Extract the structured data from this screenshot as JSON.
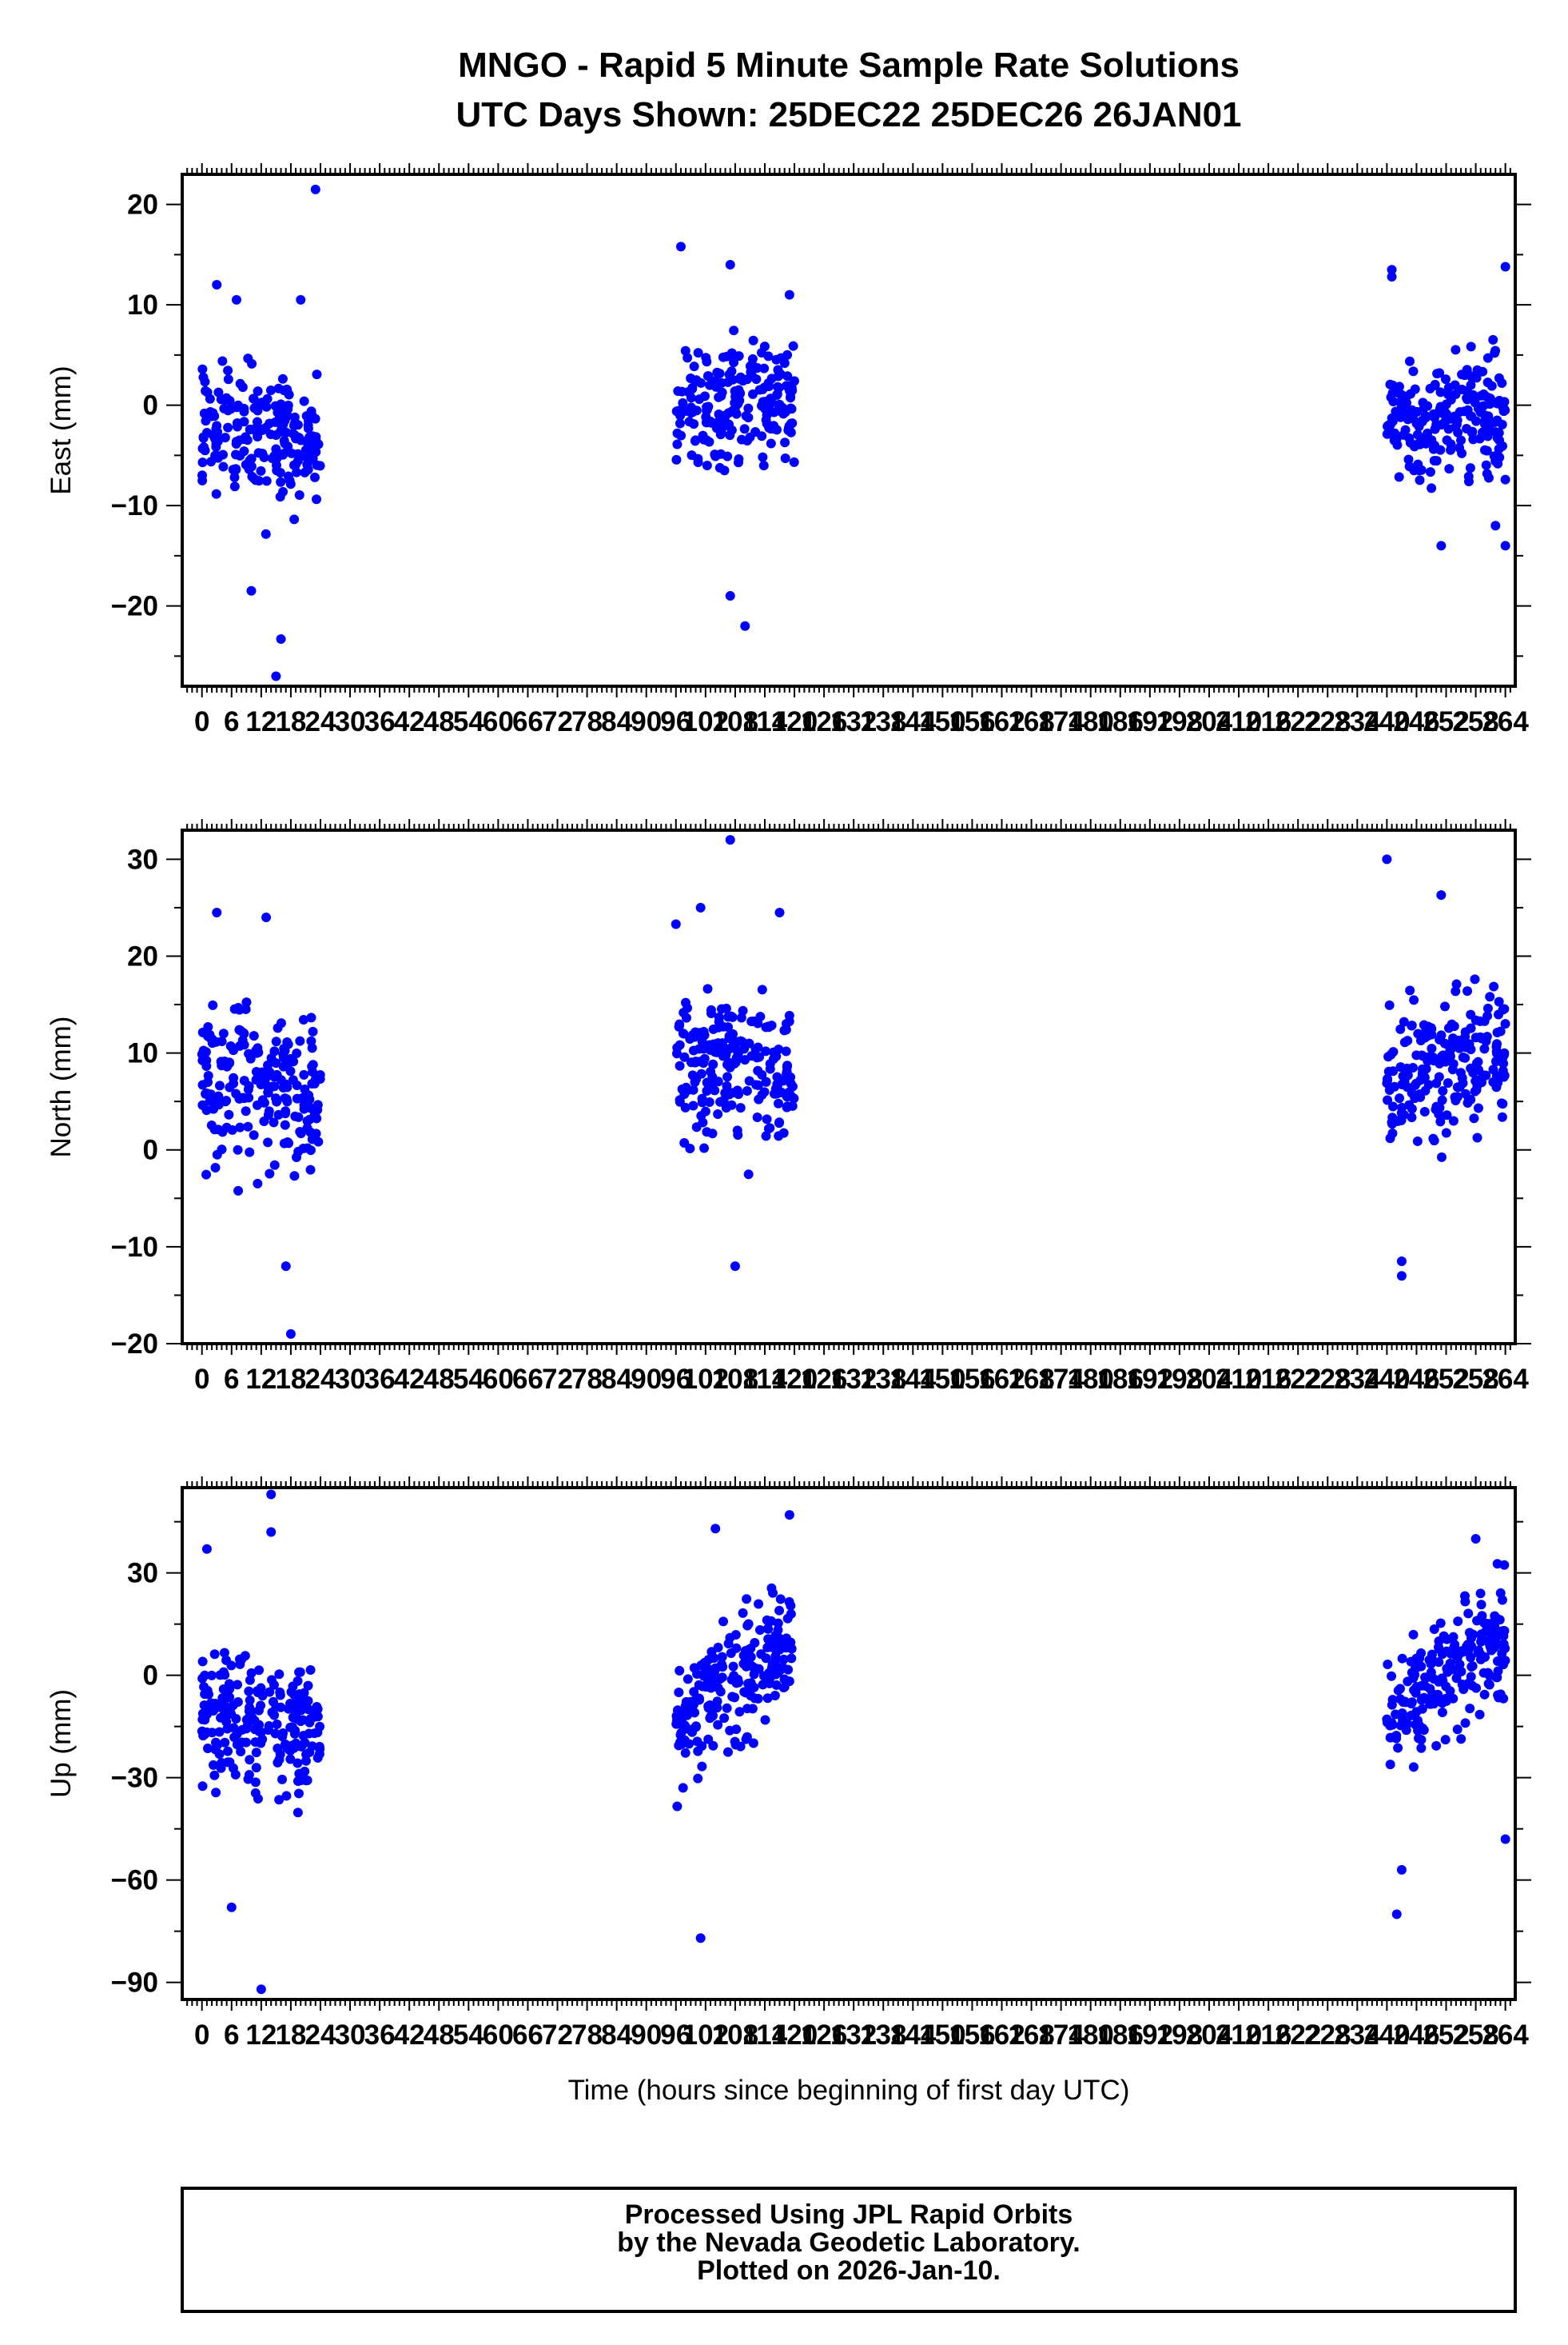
{
  "title_line1": "MNGO - Rapid 5 Minute Sample Rate Solutions",
  "title_line2": "UTC Days Shown:  25DEC22 25DEC26 26JAN01",
  "marker_color": "#0000ff",
  "xlabel": "Time (hours since beginning of first day UTC)",
  "footer": {
    "line1": "Processed Using JPL Rapid Orbits",
    "line2": "by the Nevada Geodetic Laboratory.",
    "line3": "Plotted on 2026-Jan-10."
  },
  "chart_data": [
    {
      "type": "scatter",
      "ylabel": "East (mm)",
      "xlim": [
        -4,
        266
      ],
      "ylim": [
        -28,
        23
      ],
      "yticks": [
        -20,
        -10,
        0,
        10,
        20
      ],
      "xticks": [
        0,
        6,
        12,
        18,
        24,
        30,
        36,
        42,
        48,
        54,
        60,
        66,
        72,
        78,
        84,
        90,
        96,
        102,
        108,
        114,
        120,
        126,
        132,
        138,
        144,
        150,
        156,
        162,
        168,
        174,
        180,
        186,
        192,
        198,
        204,
        210,
        216,
        222,
        228,
        234,
        240,
        246,
        252,
        258,
        264
      ],
      "xtick_labels": [
        "0",
        "6",
        "12",
        "18",
        "24",
        "30",
        "36",
        "42",
        "48",
        "54",
        "60",
        "66",
        "72",
        "78",
        "84",
        "90",
        "96",
        "102",
        "108",
        "114",
        "120",
        "126",
        "132",
        "138",
        "144",
        "150",
        "156",
        "162",
        "168",
        "174",
        "180",
        "186",
        "192",
        "198",
        "204",
        "210",
        "216",
        "222",
        "228",
        "234",
        "240",
        "246",
        "252",
        "258",
        "264"
      ],
      "clusters": [
        {
          "x_range": [
            0,
            24
          ],
          "mean_start": -2,
          "mean_end": -4,
          "spread": 4.5
        },
        {
          "x_range": [
            96,
            120
          ],
          "mean_start": 0,
          "mean_end": 0,
          "spread": 4.5
        },
        {
          "x_range": [
            240,
            264
          ],
          "mean_start": -1,
          "mean_end": -1,
          "spread": 4.0
        }
      ],
      "outliers": [
        {
          "x": 23,
          "y": 21.5
        },
        {
          "x": 15,
          "y": -27
        },
        {
          "x": 16,
          "y": -23.3
        },
        {
          "x": 3,
          "y": 12
        },
        {
          "x": 7,
          "y": 10.5
        },
        {
          "x": 20,
          "y": 10.5
        },
        {
          "x": 10,
          "y": -18.5
        },
        {
          "x": 97,
          "y": 15.8
        },
        {
          "x": 107,
          "y": 14
        },
        {
          "x": 107,
          "y": -19
        },
        {
          "x": 110,
          "y": -22
        },
        {
          "x": 119,
          "y": 11
        },
        {
          "x": 241,
          "y": 13.5
        },
        {
          "x": 241,
          "y": 12.8
        },
        {
          "x": 264,
          "y": 13.8
        },
        {
          "x": 251,
          "y": -14
        },
        {
          "x": 264,
          "y": -14
        },
        {
          "x": 262,
          "y": -12
        }
      ]
    },
    {
      "type": "scatter",
      "ylabel": "North (mm)",
      "xlim": [
        -4,
        266
      ],
      "ylim": [
        -20,
        33
      ],
      "yticks": [
        -20,
        -10,
        0,
        10,
        20,
        30
      ],
      "xticks": [
        0,
        6,
        12,
        18,
        24,
        30,
        36,
        42,
        48,
        54,
        60,
        66,
        72,
        78,
        84,
        90,
        96,
        102,
        108,
        114,
        120,
        126,
        132,
        138,
        144,
        150,
        156,
        162,
        168,
        174,
        180,
        186,
        192,
        198,
        204,
        210,
        216,
        222,
        228,
        234,
        240,
        246,
        252,
        258,
        264
      ],
      "xtick_labels": [
        "0",
        "6",
        "12",
        "18",
        "24",
        "30",
        "36",
        "42",
        "48",
        "54",
        "60",
        "66",
        "72",
        "78",
        "84",
        "90",
        "96",
        "102",
        "108",
        "114",
        "120",
        "126",
        "132",
        "138",
        "144",
        "150",
        "156",
        "162",
        "168",
        "174",
        "180",
        "186",
        "192",
        "198",
        "204",
        "210",
        "216",
        "222",
        "228",
        "234",
        "240",
        "246",
        "252",
        "258",
        "264"
      ],
      "clusters": [
        {
          "x_range": [
            0,
            24
          ],
          "mean_start": 7,
          "mean_end": 6,
          "spread": 6.0
        },
        {
          "x_range": [
            96,
            120
          ],
          "mean_start": 10,
          "mean_end": 8,
          "spread": 5.0
        },
        {
          "x_range": [
            240,
            264
          ],
          "mean_start": 7,
          "mean_end": 10,
          "spread": 5.0
        }
      ],
      "outliers": [
        {
          "x": 3,
          "y": 24.5
        },
        {
          "x": 13,
          "y": 24
        },
        {
          "x": 18,
          "y": -19
        },
        {
          "x": 17,
          "y": -12
        },
        {
          "x": 107,
          "y": 32
        },
        {
          "x": 108,
          "y": -12
        },
        {
          "x": 101,
          "y": 25
        },
        {
          "x": 96,
          "y": 23.3
        },
        {
          "x": 117,
          "y": 24.5
        },
        {
          "x": 240,
          "y": 30
        },
        {
          "x": 251,
          "y": 26.3
        },
        {
          "x": 243,
          "y": -13
        },
        {
          "x": 243,
          "y": -11.5
        }
      ]
    },
    {
      "type": "scatter",
      "ylabel": "Up (mm)",
      "xlim": [
        -4,
        266
      ],
      "ylim": [
        -95,
        55
      ],
      "yticks": [
        -90,
        -60,
        -30,
        0,
        30
      ],
      "xticks": [
        0,
        6,
        12,
        18,
        24,
        30,
        36,
        42,
        48,
        54,
        60,
        66,
        72,
        78,
        84,
        90,
        96,
        102,
        108,
        114,
        120,
        126,
        132,
        138,
        144,
        150,
        156,
        162,
        168,
        174,
        180,
        186,
        192,
        198,
        204,
        210,
        216,
        222,
        228,
        234,
        240,
        246,
        252,
        258,
        264
      ],
      "xtick_labels": [
        "0",
        "6",
        "12",
        "18",
        "24",
        "30",
        "36",
        "42",
        "48",
        "54",
        "60",
        "66",
        "72",
        "78",
        "84",
        "90",
        "96",
        "102",
        "108",
        "114",
        "120",
        "126",
        "132",
        "138",
        "144",
        "150",
        "156",
        "162",
        "168",
        "174",
        "180",
        "186",
        "192",
        "198",
        "204",
        "210",
        "216",
        "222",
        "228",
        "234",
        "240",
        "246",
        "252",
        "258",
        "264"
      ],
      "clusters": [
        {
          "x_range": [
            0,
            24
          ],
          "mean_start": -12,
          "mean_end": -15,
          "spread": 14.0
        },
        {
          "x_range": [
            96,
            120
          ],
          "mean_start": -15,
          "mean_end": 12,
          "spread": 13.0
        },
        {
          "x_range": [
            240,
            264
          ],
          "mean_start": -12,
          "mean_end": 12,
          "spread": 12.0
        }
      ],
      "outliers": [
        {
          "x": 14,
          "y": 53
        },
        {
          "x": 12,
          "y": -92
        },
        {
          "x": 6,
          "y": -68
        },
        {
          "x": 14,
          "y": 42
        },
        {
          "x": 101,
          "y": -77
        },
        {
          "x": 119,
          "y": 47
        },
        {
          "x": 104,
          "y": 43
        },
        {
          "x": 242,
          "y": -70
        },
        {
          "x": 264,
          "y": -48
        },
        {
          "x": 258,
          "y": 40
        },
        {
          "x": 1,
          "y": 37
        },
        {
          "x": 243,
          "y": -57
        }
      ]
    }
  ]
}
